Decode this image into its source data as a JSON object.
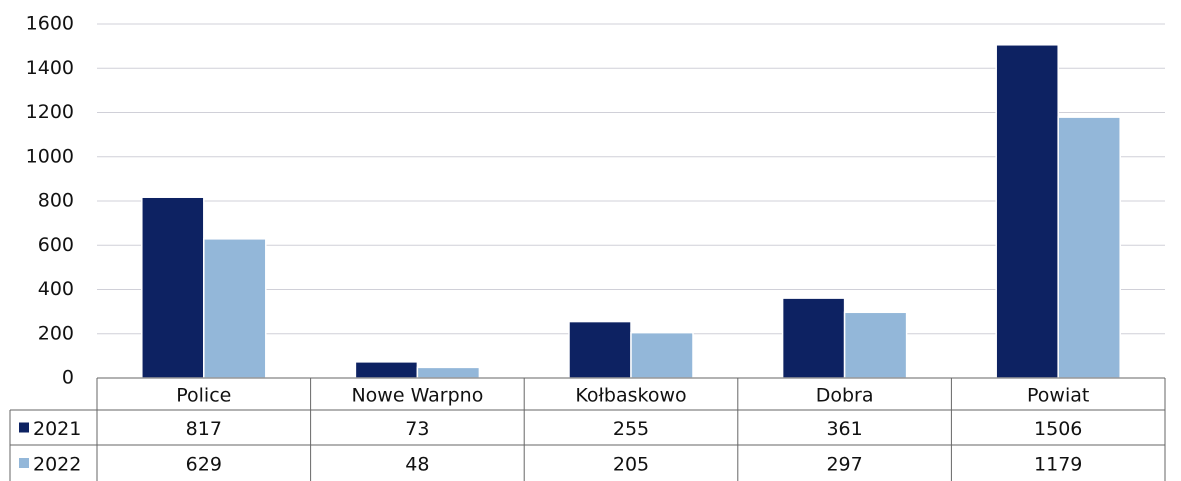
{
  "chart_data": {
    "type": "bar",
    "categories": [
      "Police",
      "Nowe Warpno",
      "Kołbaskowo",
      "Dobra",
      "Powiat"
    ],
    "series": [
      {
        "name": "2021",
        "color": "#0d2262",
        "values": [
          817,
          73,
          255,
          361,
          1506
        ]
      },
      {
        "name": "2022",
        "color": "#93b7d9",
        "values": [
          629,
          48,
          205,
          297,
          1179
        ]
      }
    ],
    "ylim": [
      0,
      1600
    ],
    "yticks": [
      0,
      200,
      400,
      600,
      800,
      1000,
      1200,
      1400,
      1600
    ],
    "grid": true
  }
}
